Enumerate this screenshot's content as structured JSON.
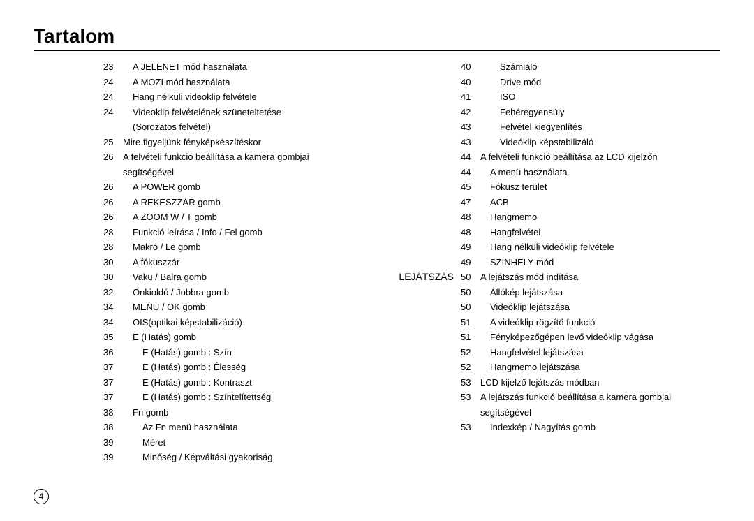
{
  "title": "Tartalom",
  "pageNumber": "4",
  "left": {
    "entries": [
      {
        "section": "",
        "page": "23",
        "text": "A JELENET mód használata",
        "indent": 1
      },
      {
        "section": "",
        "page": "24",
        "text": "A MOZI mód használata",
        "indent": 1
      },
      {
        "section": "",
        "page": "24",
        "text": "Hang nélküli videoklip felvétele",
        "indent": 1
      },
      {
        "section": "",
        "page": "24",
        "text": "Videoklip felvételének szüneteltetése",
        "indent": 1
      },
      {
        "section": "",
        "page": "",
        "text": "(Sorozatos felvétel)",
        "indent": 1
      },
      {
        "section": "",
        "page": "25",
        "text": "Mire figyeljünk fényképkészítéskor",
        "indent": 0
      },
      {
        "section": "",
        "page": "26",
        "text": "A felvételi funkció beállítása a kamera gombjai",
        "indent": 0
      },
      {
        "section": "",
        "page": "",
        "text": "segítségével",
        "indent": 0
      },
      {
        "section": "",
        "page": "26",
        "text": "A POWER gomb",
        "indent": 1
      },
      {
        "section": "",
        "page": "26",
        "text": "A REKESZZÁR gomb",
        "indent": 1
      },
      {
        "section": "",
        "page": "26",
        "text": "A ZOOM W / T gomb",
        "indent": 1
      },
      {
        "section": "",
        "page": "28",
        "text": "Funkció leírása / Info / Fel gomb",
        "indent": 1
      },
      {
        "section": "",
        "page": "28",
        "text": "Makró / Le gomb",
        "indent": 1
      },
      {
        "section": "",
        "page": "30",
        "text": "A fókuszzár",
        "indent": 1
      },
      {
        "section": "",
        "page": "30",
        "text": "Vaku / Balra gomb",
        "indent": 1
      },
      {
        "section": "",
        "page": "32",
        "text": "Önkioldó / Jobbra gomb",
        "indent": 1
      },
      {
        "section": "",
        "page": "34",
        "text": "MENU / OK gomb",
        "indent": 1
      },
      {
        "section": "",
        "page": "34",
        "text": "OIS(optikai képstabilizáció)",
        "indent": 1
      },
      {
        "section": "",
        "page": "35",
        "text": "E (Hatás) gomb",
        "indent": 1
      },
      {
        "section": "",
        "page": "36",
        "text": "E (Hatás) gomb : Szín",
        "indent": 2
      },
      {
        "section": "",
        "page": "37",
        "text": "E (Hatás) gomb : Élesség",
        "indent": 2
      },
      {
        "section": "",
        "page": "37",
        "text": "E (Hatás) gomb : Kontraszt",
        "indent": 2
      },
      {
        "section": "",
        "page": "37",
        "text": "E (Hatás) gomb : Színtelítettség",
        "indent": 2
      },
      {
        "section": "",
        "page": "38",
        "text": "Fn gomb",
        "indent": 1
      },
      {
        "section": "",
        "page": "38",
        "text": "Az Fn menü használata",
        "indent": 2
      },
      {
        "section": "",
        "page": "39",
        "text": "Méret",
        "indent": 2
      },
      {
        "section": "",
        "page": "39",
        "text": "Minőség / Képváltási gyakoriság",
        "indent": 2
      }
    ]
  },
  "right": {
    "entries": [
      {
        "section": "",
        "page": "40",
        "text": "Számláló",
        "indent": 2
      },
      {
        "section": "",
        "page": "40",
        "text": "Drive mód",
        "indent": 2
      },
      {
        "section": "",
        "page": "41",
        "text": "ISO",
        "indent": 2
      },
      {
        "section": "",
        "page": "42",
        "text": "Fehéregyensúly",
        "indent": 2
      },
      {
        "section": "",
        "page": "43",
        "text": "Felvétel kiegyenlítés",
        "indent": 2
      },
      {
        "section": "",
        "page": "43",
        "text": "Videóklip képstabilizáló",
        "indent": 2
      },
      {
        "section": "",
        "page": "44",
        "text": "A felvételi funkció beállítása az LCD kijelzőn",
        "indent": 0
      },
      {
        "section": "",
        "page": "44",
        "text": "A menü használata",
        "indent": 1
      },
      {
        "section": "",
        "page": "45",
        "text": "Fókusz terület",
        "indent": 1
      },
      {
        "section": "",
        "page": "47",
        "text": "ACB",
        "indent": 1
      },
      {
        "section": "",
        "page": "48",
        "text": "Hangmemo",
        "indent": 1
      },
      {
        "section": "",
        "page": "48",
        "text": "Hangfelvétel",
        "indent": 1
      },
      {
        "section": "",
        "page": "49",
        "text": "Hang nélküli videóklip felvétele",
        "indent": 1
      },
      {
        "section": "",
        "page": "49",
        "text": "SZÍNHELY mód",
        "indent": 1
      },
      {
        "section": "",
        "page": "",
        "text": "",
        "indent": 0
      },
      {
        "section": "LEJÁTSZÁS",
        "page": "50",
        "text": "A lejátszás mód indítása",
        "indent": 0
      },
      {
        "section": "",
        "page": "50",
        "text": "Állókép lejátszása",
        "indent": 1
      },
      {
        "section": "",
        "page": "50",
        "text": "Videóklip lejátszása",
        "indent": 1
      },
      {
        "section": "",
        "page": "51",
        "text": "A videóklip rögzítő funkció",
        "indent": 1
      },
      {
        "section": "",
        "page": "51",
        "text": "Fényképezőgépen levő videóklip vágása",
        "indent": 1
      },
      {
        "section": "",
        "page": "52",
        "text": "Hangfelvétel lejátszása",
        "indent": 1
      },
      {
        "section": "",
        "page": "52",
        "text": "Hangmemo lejátszása",
        "indent": 1
      },
      {
        "section": "",
        "page": "53",
        "text": "LCD kijelző lejátszás módban",
        "indent": 0
      },
      {
        "section": "",
        "page": "53",
        "text": "A lejátszás funkció beállítása a kamera gombjai",
        "indent": 0
      },
      {
        "section": "",
        "page": "",
        "text": "segítségével",
        "indent": 0
      },
      {
        "section": "",
        "page": "53",
        "text": "Indexkép / Nagyítás gomb",
        "indent": 1
      }
    ]
  }
}
